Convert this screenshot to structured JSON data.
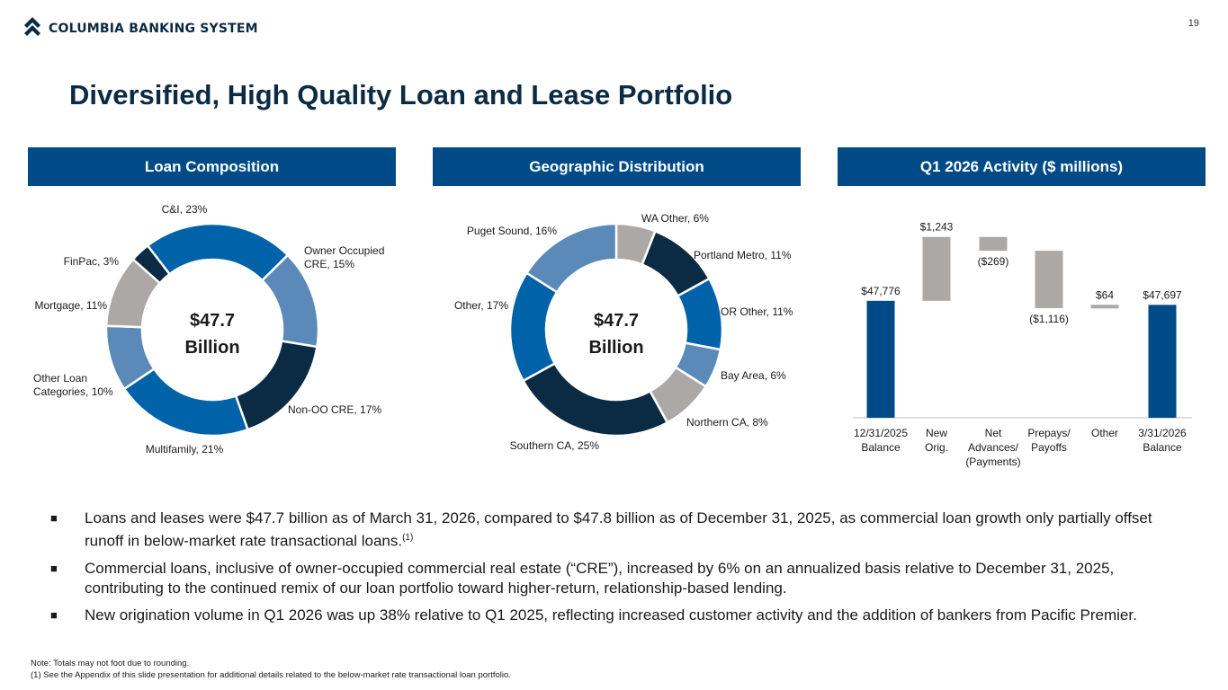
{
  "header": {
    "company": "COLUMBIA BANKING SYSTEM",
    "page_number": "19"
  },
  "title": "Diversified, High Quality Loan and Lease Portfolio",
  "panels": {
    "loan_composition": "Loan Composition",
    "geographic": "Geographic Distribution",
    "activity": "Q1 2026 Activity ($ millions)"
  },
  "colors": {
    "navy": "#0b2b45",
    "header_blue": "#004b87",
    "mid_blue": "#0062a8",
    "light_blue": "#5b8ab8",
    "gray": "#aca8a5"
  },
  "chart_data": [
    {
      "type": "pie",
      "title": "Loan Composition",
      "center_value": "$47.7",
      "center_unit": "Billion",
      "slices": [
        {
          "label": "C&I, 23%",
          "value": 23,
          "color": "#0062a8"
        },
        {
          "label": "Owner Occupied CRE, 15%",
          "value": 15,
          "color": "#5b8ab8"
        },
        {
          "label": "Non-OO CRE, 17%",
          "value": 17,
          "color": "#0b2b45"
        },
        {
          "label": "Multifamily, 21%",
          "value": 21,
          "color": "#0062a8"
        },
        {
          "label": "Other Loan Categories, 10%",
          "value": 10,
          "color": "#5b8ab8"
        },
        {
          "label": "Mortgage, 11%",
          "value": 11,
          "color": "#aca8a5"
        },
        {
          "label": "FinPac, 3%",
          "value": 3,
          "color": "#0b2b45"
        }
      ]
    },
    {
      "type": "pie",
      "title": "Geographic Distribution",
      "center_value": "$47.7",
      "center_unit": "Billion",
      "slices": [
        {
          "label": "WA Other, 6%",
          "value": 6,
          "color": "#aca8a5"
        },
        {
          "label": "Portland Metro, 11%",
          "value": 11,
          "color": "#0b2b45"
        },
        {
          "label": "OR Other, 11%",
          "value": 11,
          "color": "#0062a8"
        },
        {
          "label": "Bay Area, 6%",
          "value": 6,
          "color": "#5b8ab8"
        },
        {
          "label": "Northern CA, 8%",
          "value": 8,
          "color": "#aca8a5"
        },
        {
          "label": "Southern CA, 25%",
          "value": 25,
          "color": "#0b2b45"
        },
        {
          "label": "Other, 17%",
          "value": 17,
          "color": "#0062a8"
        },
        {
          "label": "Puget Sound, 16%",
          "value": 16,
          "color": "#5b8ab8"
        }
      ]
    },
    {
      "type": "bar",
      "subtype": "waterfall",
      "title": "Q1 2026 Activity ($ millions)",
      "categories": [
        "12/31/2025 Balance",
        "New Orig.",
        "Net Advances/ (Payments)",
        "Prepays/ Payoffs",
        "Other",
        "3/31/2026 Balance"
      ],
      "values": [
        47776,
        1243,
        -269,
        -1116,
        64,
        47697
      ],
      "value_labels": [
        "$47,776",
        "$1,243",
        "($269)",
        "($1,116)",
        "$64",
        "$47,697"
      ],
      "kinds": [
        "total",
        "delta",
        "delta",
        "delta",
        "delta",
        "total"
      ]
    }
  ],
  "bullets": [
    {
      "marker": "■",
      "text": "Loans and leases were $47.7 billion as of March 31, 2026, compared to $47.8 billion as of December 31, 2025, as commercial loan growth only partially offset runoff in below-market rate transactional loans.",
      "footnote": "(1)"
    },
    {
      "marker": "■",
      "text": "Commercial loans, inclusive of owner-occupied commercial real estate (“CRE”), increased by 6% on an annualized basis relative to December 31, 2025, contributing to the continued remix of our loan portfolio toward higher-return, relationship-based lending."
    },
    {
      "marker": "■",
      "text": "New origination volume in Q1 2026 was up 38% relative to Q1 2025, reflecting increased customer activity and the addition of bankers from Pacific Premier."
    }
  ],
  "notes": [
    "Note: Totals may not foot due to rounding.",
    "(1)  See the Appendix of this slide presentation for additional details related to the below-market rate transactional loan portfolio."
  ]
}
